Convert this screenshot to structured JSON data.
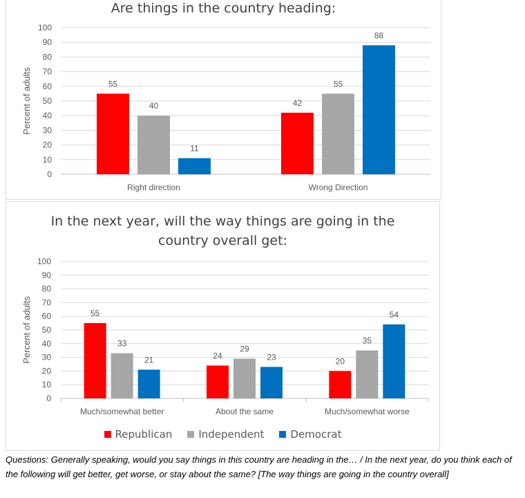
{
  "chart_data": [
    {
      "type": "bar",
      "title": "Are things in the country heading:",
      "ylabel": "Percent of adults",
      "xlabel": "",
      "ylim": [
        0,
        100
      ],
      "yticks": [
        0,
        10,
        20,
        30,
        40,
        50,
        60,
        70,
        80,
        90,
        100
      ],
      "grid": true,
      "categories": [
        "Right direction",
        "Wrong Direction"
      ],
      "series": [
        {
          "name": "Republican",
          "color": "#ff0000",
          "values": [
            55,
            42
          ]
        },
        {
          "name": "Independent",
          "color": "#a6a6a6",
          "values": [
            40,
            55
          ]
        },
        {
          "name": "Democrat",
          "color": "#0070c0",
          "values": [
            11,
            88
          ]
        }
      ]
    },
    {
      "type": "bar",
      "title": "In the next year, will the way things are going in the country overall get:",
      "ylabel": "Percent of adults",
      "xlabel": "",
      "ylim": [
        0,
        100
      ],
      "yticks": [
        0,
        10,
        20,
        30,
        40,
        50,
        60,
        70,
        80,
        90,
        100
      ],
      "grid": true,
      "legend_position": "bottom",
      "categories": [
        "Much/somewhat better",
        "About the same",
        "Much/somewhat worse"
      ],
      "series": [
        {
          "name": "Republican",
          "color": "#ff0000",
          "values": [
            55,
            24,
            20
          ]
        },
        {
          "name": "Independent",
          "color": "#a6a6a6",
          "values": [
            33,
            29,
            35
          ]
        },
        {
          "name": "Democrat",
          "color": "#0070c0",
          "values": [
            21,
            23,
            54
          ]
        }
      ]
    }
  ],
  "footnote": "Questions: Generally speaking, would you say things in this country are heading in the… / In the next year, do you think each of the following will get better, get worse, or stay about the same? [The way things are going in the country overall]"
}
